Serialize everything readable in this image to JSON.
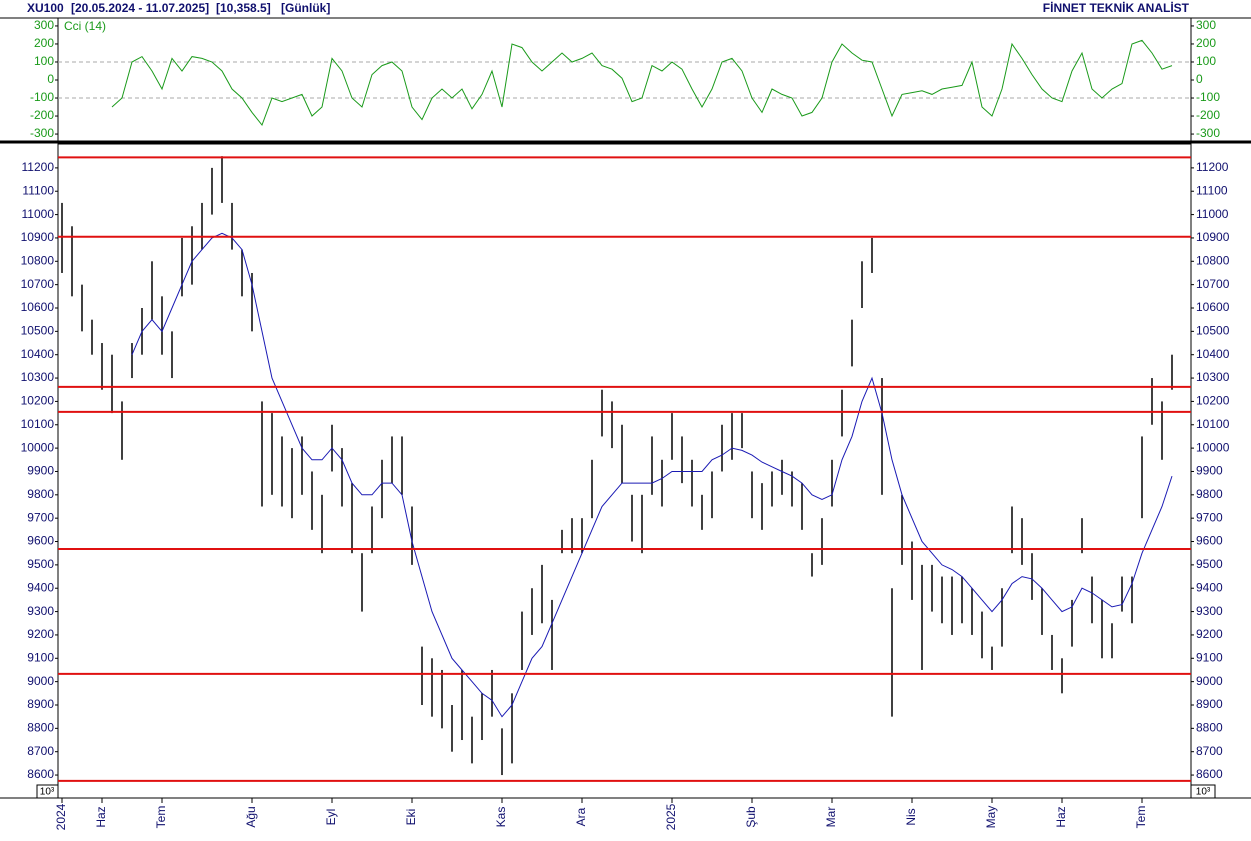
{
  "header": {
    "symbol": "XU100",
    "range": "[20.05.2024 - 11.07.2025]",
    "last": "[10,358.5]",
    "period": "[Günlük]",
    "brand": "FİNNET TEKNİK ANALİST"
  },
  "chart_data": [
    {
      "type": "line",
      "title": "Cci (14)",
      "color": "#1a9a1a",
      "values": [
        null,
        null,
        null,
        null,
        null,
        -150,
        -100,
        100,
        130,
        50,
        -50,
        120,
        50,
        130,
        120,
        100,
        50,
        -50,
        -100,
        -180,
        -250,
        -100,
        -120,
        -100,
        -80,
        -200,
        -150,
        120,
        50,
        -100,
        -150,
        30,
        80,
        100,
        50,
        -150,
        -220,
        -100,
        -50,
        -100,
        -50,
        -160,
        -80,
        50,
        -150,
        200,
        180,
        100,
        50,
        100,
        150,
        100,
        120,
        150,
        80,
        60,
        10,
        -120,
        -100,
        80,
        50,
        100,
        60,
        -50,
        -150,
        -50,
        100,
        120,
        50,
        -100,
        -180,
        -50,
        -80,
        -100,
        -200,
        -180,
        -100,
        100,
        200,
        150,
        110,
        100,
        -50,
        -200,
        -80,
        -70,
        -60,
        -80,
        -50,
        -40,
        -30,
        100,
        -150,
        -200,
        -50,
        200,
        120,
        30,
        -50,
        -100,
        -120,
        50,
        150,
        -50,
        -100,
        -50,
        -20,
        200,
        220,
        150,
        60,
        80
      ],
      "ylim": [
        -333,
        333
      ],
      "yticks": [
        -300,
        -200,
        -100,
        0,
        100,
        200,
        300
      ],
      "grid_levels": [
        -100,
        100
      ]
    },
    {
      "type": "ohlc",
      "color": "#000000",
      "scale_note": "10³",
      "categories": [
        "2024",
        null,
        null,
        null,
        "Haz",
        null,
        null,
        null,
        null,
        null,
        "Tem",
        null,
        null,
        null,
        null,
        null,
        null,
        null,
        null,
        "Ağu",
        null,
        null,
        null,
        null,
        null,
        null,
        null,
        "Eyl",
        null,
        null,
        null,
        null,
        null,
        null,
        null,
        "Eki",
        null,
        null,
        null,
        null,
        null,
        null,
        null,
        null,
        "Kas",
        null,
        null,
        null,
        null,
        null,
        null,
        null,
        "Ara",
        null,
        null,
        null,
        null,
        null,
        null,
        null,
        null,
        "2025",
        null,
        null,
        null,
        null,
        null,
        null,
        null,
        "Şub",
        null,
        null,
        null,
        null,
        null,
        null,
        null,
        "Mar",
        null,
        null,
        null,
        null,
        null,
        null,
        null,
        "Nis",
        null,
        null,
        null,
        null,
        null,
        null,
        null,
        "May",
        null,
        null,
        null,
        null,
        null,
        null,
        "Haz",
        null,
        null,
        null,
        null,
        null,
        null,
        null,
        "Tem",
        null,
        null,
        null
      ],
      "high": [
        11050,
        10950,
        10700,
        10550,
        10450,
        10400,
        10200,
        10450,
        10600,
        10800,
        10650,
        10500,
        10900,
        10950,
        11050,
        11200,
        11250,
        11050,
        10850,
        10750,
        10200,
        10150,
        10050,
        10000,
        10050,
        9900,
        9800,
        10100,
        10000,
        9850,
        9550,
        9750,
        9950,
        10050,
        10050,
        9750,
        9150,
        9100,
        9050,
        8900,
        9050,
        8850,
        8950,
        9050,
        8800,
        8950,
        9300,
        9400,
        9500,
        9350,
        9650,
        9700,
        9700,
        9950,
        10250,
        10200,
        10100,
        9800,
        9800,
        10050,
        9950,
        10150,
        10050,
        9950,
        9800,
        9900,
        10100,
        10150,
        10150,
        9900,
        9850,
        9900,
        9950,
        9900,
        9850,
        9550,
        9700,
        9950,
        10250,
        10550,
        10800,
        10900,
        10300,
        9400,
        9800,
        9600,
        9500,
        9500,
        9450,
        9450,
        9450,
        9400,
        9300,
        9150,
        9400,
        9750,
        9700,
        9550,
        9400,
        9200,
        9100,
        9350,
        9700,
        9450,
        9350,
        9250,
        9450,
        9450,
        10050,
        10300,
        10200,
        10400
      ],
      "low": [
        10750,
        10650,
        10500,
        10400,
        10250,
        10150,
        9950,
        10300,
        10400,
        10550,
        10400,
        10300,
        10650,
        10700,
        10850,
        11000,
        11050,
        10850,
        10650,
        10500,
        9750,
        9800,
        9750,
        9700,
        9800,
        9650,
        9550,
        9900,
        9750,
        9550,
        9300,
        9550,
        9700,
        9850,
        9800,
        9500,
        8900,
        8850,
        8800,
        8700,
        8750,
        8650,
        8750,
        8850,
        8600,
        8650,
        9050,
        9200,
        9250,
        9050,
        9550,
        9550,
        9550,
        9700,
        10050,
        10000,
        9850,
        9600,
        9550,
        9800,
        9750,
        9950,
        9850,
        9750,
        9650,
        9700,
        9900,
        9950,
        10000,
        9700,
        9650,
        9750,
        9800,
        9750,
        9650,
        9450,
        9500,
        9750,
        10050,
        10350,
        10600,
        10750,
        9800,
        8850,
        9500,
        9350,
        9050,
        9300,
        9250,
        9200,
        9250,
        9200,
        9100,
        9050,
        9150,
        9550,
        9500,
        9350,
        9200,
        9050,
        8950,
        9150,
        9550,
        9250,
        9100,
        9100,
        9300,
        9250,
        9700,
        10100,
        9950,
        10250
      ],
      "moving_average": {
        "color": "#1a1ab4",
        "values": [
          null,
          null,
          null,
          null,
          null,
          null,
          null,
          10400,
          10500,
          10550,
          10500,
          10600,
          10700,
          10800,
          10850,
          10900,
          10920,
          10900,
          10850,
          10700,
          10500,
          10300,
          10200,
          10100,
          10000,
          9950,
          9950,
          10000,
          9950,
          9850,
          9800,
          9800,
          9850,
          9850,
          9800,
          9600,
          9450,
          9300,
          9200,
          9100,
          9050,
          9000,
          8950,
          8920,
          8850,
          8900,
          9000,
          9100,
          9150,
          9250,
          9350,
          9450,
          9550,
          9650,
          9750,
          9800,
          9850,
          9850,
          9850,
          9850,
          9870,
          9900,
          9900,
          9900,
          9900,
          9950,
          9970,
          10000,
          9990,
          9970,
          9940,
          9920,
          9900,
          9880,
          9850,
          9800,
          9780,
          9800,
          9950,
          10050,
          10200,
          10300,
          10150,
          9950,
          9800,
          9700,
          9600,
          9550,
          9500,
          9480,
          9450,
          9400,
          9350,
          9300,
          9350,
          9420,
          9450,
          9440,
          9400,
          9350,
          9300,
          9320,
          9400,
          9380,
          9350,
          9320,
          9330,
          9420,
          9550,
          9650,
          9750,
          9880
        ]
      },
      "levels": {
        "color": "#e01010",
        "values": [
          11245,
          10905,
          10262,
          10155,
          9568,
          9033,
          8575
        ]
      },
      "ylim": [
        8506,
        11298
      ],
      "yticks": [
        8600,
        8700,
        8800,
        8900,
        9000,
        9100,
        9200,
        9300,
        9400,
        9500,
        9600,
        9700,
        9800,
        9900,
        10000,
        10100,
        10200,
        10300,
        10400,
        10500,
        10600,
        10700,
        10800,
        10900,
        11000,
        11100,
        11200
      ]
    }
  ]
}
